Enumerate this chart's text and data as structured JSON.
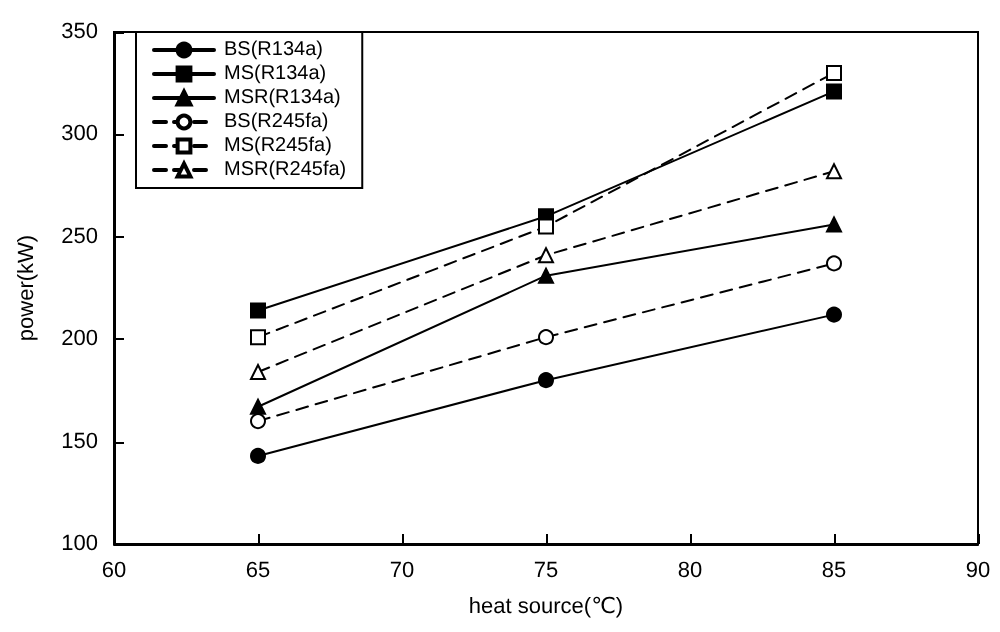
{
  "chart_data": {
    "type": "line",
    "xlabel": "heat source(℃)",
    "ylabel": "power(kW)",
    "x": [
      65,
      75,
      85
    ],
    "xlim": [
      60,
      90
    ],
    "xticks": [
      60,
      65,
      70,
      75,
      80,
      85,
      90
    ],
    "ylim": [
      100,
      350
    ],
    "yticks": [
      100,
      150,
      200,
      250,
      300,
      350
    ],
    "grid": false,
    "legend": "top left",
    "series": [
      {
        "name": "BS(R134a)",
        "color": "#000000",
        "marker": "circle",
        "line_style": "solid",
        "values": [
          143,
          180,
          212
        ]
      },
      {
        "name": "MS(R134a)",
        "color": "#000000",
        "marker": "square",
        "line_style": "solid",
        "values": [
          214,
          260,
          321
        ]
      },
      {
        "name": "MSR(R134a)",
        "color": "#000000",
        "marker": "triangle",
        "line_style": "solid",
        "values": [
          167,
          231,
          256
        ]
      },
      {
        "name": "BS(R245fa)",
        "color": "#000000",
        "marker": "circle",
        "line_style": "dashed",
        "values": [
          160,
          201,
          237
        ]
      },
      {
        "name": "MS(R245fa)",
        "color": "#000000",
        "marker": "square",
        "line_style": "dashed",
        "values": [
          201,
          255,
          330
        ]
      },
      {
        "name": "MSR(R245fa)",
        "color": "#000000",
        "marker": "triangle",
        "line_style": "dashed",
        "values": [
          184,
          241,
          282
        ]
      }
    ]
  }
}
